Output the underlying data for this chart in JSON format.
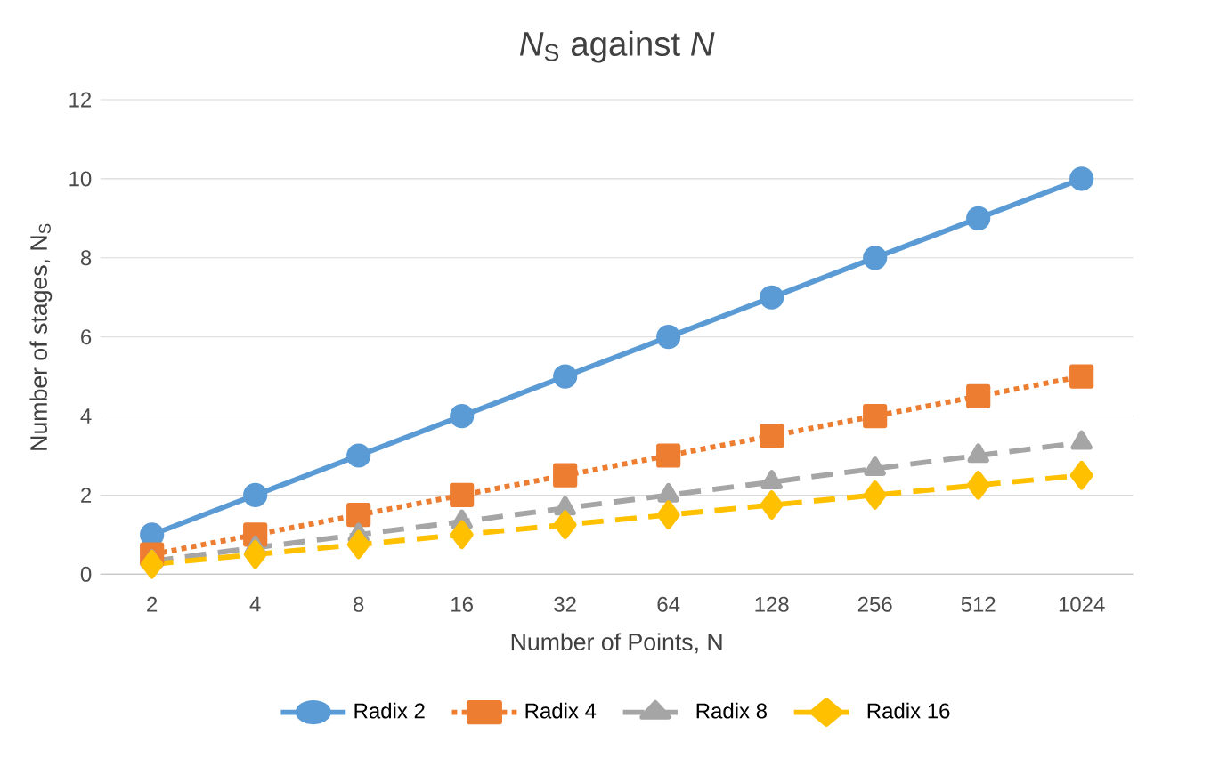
{
  "chart_data": {
    "type": "line",
    "title": "*N*$_{S}$ against *N*",
    "xlabel": "Number of Points, N",
    "ylabel": "Number of stages, N$_{S}$",
    "categories": [
      "2",
      "4",
      "8",
      "16",
      "32",
      "64",
      "128",
      "256",
      "512",
      "1024"
    ],
    "series": [
      {
        "name": "Radix 2",
        "color": "#5b9bd5",
        "marker": "circle",
        "line_style": "solid",
        "values": [
          1,
          2,
          3,
          4,
          5,
          6,
          7,
          8,
          9,
          10
        ]
      },
      {
        "name": "Radix 4",
        "color": "#ed7d31",
        "marker": "square",
        "line_style": "dotted",
        "values": [
          0.5,
          1,
          1.5,
          2,
          2.5,
          3,
          3.5,
          4,
          4.5,
          5
        ]
      },
      {
        "name": "Radix 8",
        "color": "#a5a5a5",
        "marker": "triangle",
        "line_style": "dashed",
        "values": [
          0.33,
          0.67,
          1,
          1.33,
          1.67,
          2,
          2.33,
          2.67,
          3,
          3.33
        ]
      },
      {
        "name": "Radix 16",
        "color": "#ffc000",
        "marker": "diamond",
        "line_style": "dashed",
        "values": [
          0.25,
          0.5,
          0.75,
          1,
          1.25,
          1.5,
          1.75,
          2,
          2.25,
          2.5
        ]
      }
    ],
    "ylim": [
      0,
      12
    ],
    "yticks": [
      0,
      2,
      4,
      6,
      8,
      10,
      12
    ],
    "grid": "y",
    "legend": "bottom"
  }
}
